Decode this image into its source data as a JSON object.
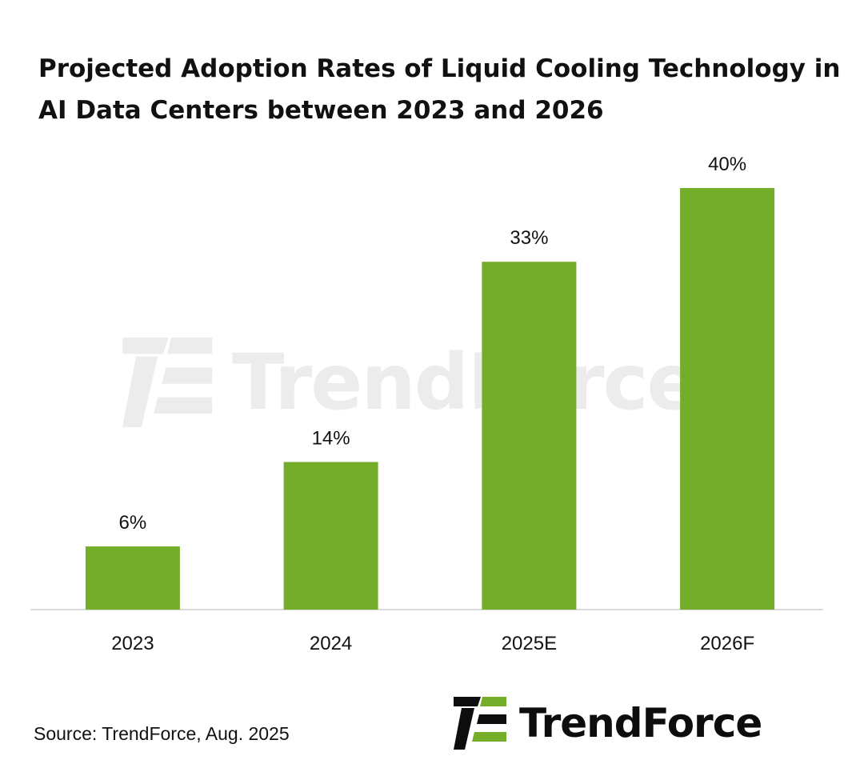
{
  "title": {
    "line1": "Projected Adoption Rates of Liquid Cooling Technology in",
    "line2": "AI Data Centers between 2023 and 2026"
  },
  "chart_data": {
    "type": "bar",
    "title": "Projected Adoption Rates of Liquid Cooling Technology in AI Data Centers between 2023 and 2026",
    "categories": [
      "2023",
      "2024",
      "2025E",
      "2026F"
    ],
    "values": [
      6,
      14,
      33,
      40
    ],
    "value_labels": [
      "6%",
      "14%",
      "33%",
      "40%"
    ],
    "xlabel": "",
    "ylabel": "",
    "ylim": [
      0,
      40
    ],
    "grid": false,
    "legend": "none",
    "bar_color": "#74ad2a"
  },
  "source": "Source: TrendForce, Aug. 2025",
  "brand": {
    "name": "TrendForce",
    "watermark": "TrendForce",
    "color_dark": "#0d0d0d",
    "color_green": "#74ad2a"
  }
}
